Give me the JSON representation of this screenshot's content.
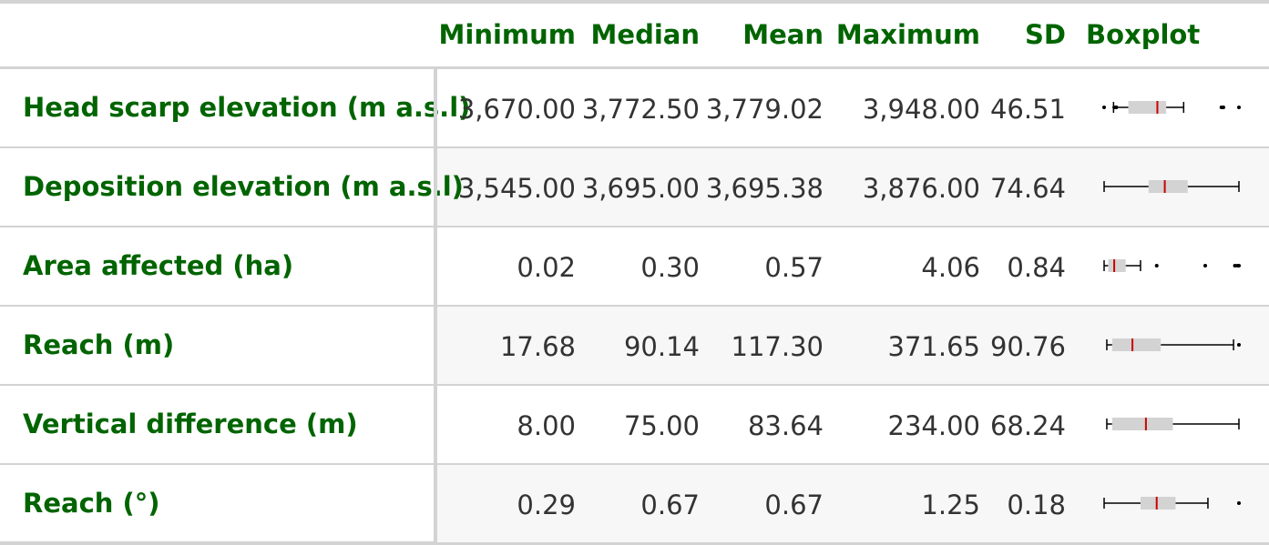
{
  "columns": [
    "Minimum",
    "Median",
    "Mean",
    "Maximum",
    "SD",
    "Boxplot"
  ],
  "rows": [
    {
      "label": "Head scarp elevation (m a.s.l)",
      "min": "3,670.00",
      "median": "3,772.50",
      "mean": "3,779.02",
      "max": "3,948.00",
      "sd": "46.51",
      "box": {
        "wlo": 0.07,
        "q1": 0.18,
        "med": 0.395,
        "q3": 0.46,
        "whi": 0.59,
        "out": [
          0.0,
          0.075,
          0.085,
          0.09,
          0.09,
          0.87,
          0.885,
          1.0
        ]
      }
    },
    {
      "label": "Deposition elevation (m a.s.l)",
      "min": "3,545.00",
      "median": "3,695.00",
      "mean": "3,695.38",
      "max": "3,876.00",
      "sd": "74.64",
      "box": {
        "wlo": 0.0,
        "q1": 0.33,
        "med": 0.45,
        "q3": 0.62,
        "whi": 1.0,
        "out": []
      }
    },
    {
      "label": "Area affected (ha)",
      "min": "0.02",
      "median": "0.30",
      "mean": "0.57",
      "max": "4.06",
      "sd": "0.84",
      "box": {
        "wlo": 0.0,
        "q1": 0.03,
        "med": 0.075,
        "q3": 0.16,
        "whi": 0.16,
        "whi2": 0.27,
        "out": [
          0.39,
          0.75,
          0.97,
          0.99,
          1.0
        ]
      }
    },
    {
      "label": "Reach (m)",
      "min": "17.68",
      "median": "90.14",
      "mean": "117.30",
      "max": "371.65",
      "sd": "90.76",
      "box": {
        "wlo": 0.02,
        "q1": 0.06,
        "med": 0.21,
        "q3": 0.42,
        "whi": 0.96,
        "out": [
          1.0
        ]
      }
    },
    {
      "label": "Vertical difference (m)",
      "min": "8.00",
      "median": "75.00",
      "mean": "83.64",
      "max": "234.00",
      "sd": "68.24",
      "box": {
        "wlo": 0.02,
        "q1": 0.06,
        "med": 0.31,
        "q3": 0.51,
        "whi": 1.0,
        "out": []
      }
    },
    {
      "label": "Reach (°)",
      "min": "0.29",
      "median": "0.67",
      "mean": "0.67",
      "max": "1.25",
      "sd": "0.18",
      "box": {
        "wlo": 0.0,
        "q1": 0.27,
        "med": 0.39,
        "q3": 0.53,
        "whi": 0.77,
        "out": [
          1.0
        ]
      }
    }
  ],
  "colors": {
    "header": "#006400",
    "box": "#d3d3d3",
    "median": "#cc0000"
  }
}
